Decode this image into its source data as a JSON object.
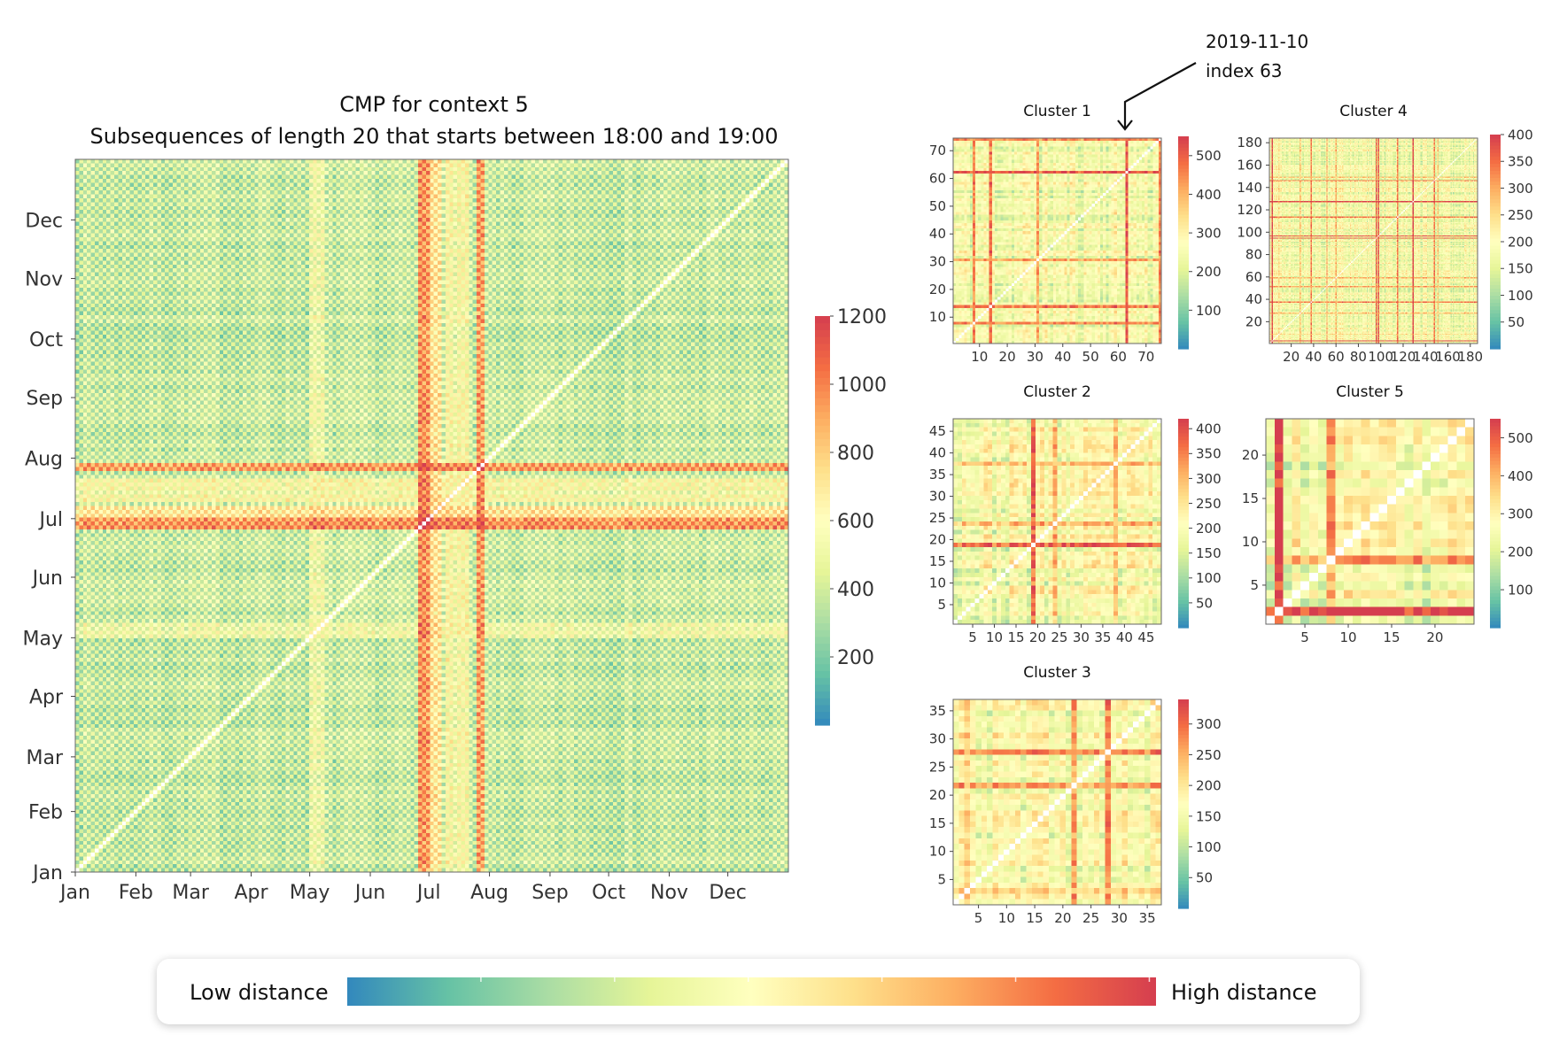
{
  "colormap": {
    "name": "Spectral_r",
    "stops": [
      "#3288bd",
      "#66c2a5",
      "#abdda4",
      "#e6f598",
      "#ffffbf",
      "#fee08b",
      "#fdae61",
      "#f46d43",
      "#d53e4f"
    ]
  },
  "annotation": {
    "line1": "2019-11-10",
    "line2": "index 63"
  },
  "legend": {
    "low_label": "Low distance",
    "high_label": "High distance"
  },
  "chart_data": [
    {
      "id": "main",
      "type": "heatmap",
      "title_line1": "CMP for context 5",
      "title_line2": "Subsequences of length 20 that starts between 18:00 and 19:00",
      "x_tick_labels": [
        "Jan",
        "Feb",
        "Mar",
        "Apr",
        "May",
        "Jun",
        "Jul",
        "Aug",
        "Sep",
        "Oct",
        "Nov",
        "Dec"
      ],
      "x_tick_days": [
        0,
        31,
        59,
        90,
        120,
        151,
        181,
        212,
        243,
        273,
        304,
        334
      ],
      "y_tick_labels": [
        "Jan",
        "Feb",
        "Mar",
        "Apr",
        "May",
        "Jun",
        "Jul",
        "Aug",
        "Sep",
        "Oct",
        "Nov",
        "Dec"
      ],
      "y_tick_days": [
        0,
        31,
        59,
        90,
        120,
        151,
        181,
        212,
        243,
        273,
        304,
        334
      ],
      "x_range_days": [
        0,
        365
      ],
      "colorbar_ticks": [
        200,
        400,
        600,
        800,
        1000,
        1200
      ],
      "colorbar_range": [
        0,
        1200
      ],
      "high_distance_months": [
        "Jul",
        "Aug"
      ],
      "diagonal": "zero distance"
    },
    {
      "id": "cluster1",
      "type": "heatmap",
      "title": "Cluster 1",
      "size": 75,
      "x_ticks": [
        10,
        20,
        30,
        40,
        50,
        60,
        70
      ],
      "y_ticks": [
        10,
        20,
        30,
        40,
        50,
        60,
        70
      ],
      "colorbar_ticks": [
        100,
        200,
        300,
        400,
        500
      ],
      "colorbar_range": [
        0,
        550
      ],
      "highlight_index": 63
    },
    {
      "id": "cluster2",
      "type": "heatmap",
      "title": "Cluster 2",
      "size": 48,
      "x_ticks": [
        5,
        10,
        15,
        20,
        25,
        30,
        35,
        40,
        45
      ],
      "y_ticks": [
        5,
        10,
        15,
        20,
        25,
        30,
        35,
        40,
        45
      ],
      "colorbar_ticks": [
        50,
        100,
        150,
        200,
        250,
        300,
        350,
        400
      ],
      "colorbar_range": [
        0,
        420
      ]
    },
    {
      "id": "cluster3",
      "type": "heatmap",
      "title": "Cluster 3",
      "size": 37,
      "x_ticks": [
        5,
        10,
        15,
        20,
        25,
        30,
        35
      ],
      "y_ticks": [
        5,
        10,
        15,
        20,
        25,
        30,
        35
      ],
      "colorbar_ticks": [
        50,
        100,
        150,
        200,
        250,
        300
      ],
      "colorbar_range": [
        0,
        340
      ]
    },
    {
      "id": "cluster4",
      "type": "heatmap",
      "title": "Cluster 4",
      "size": 186,
      "x_ticks": [
        20,
        40,
        60,
        80,
        100,
        120,
        140,
        160,
        180
      ],
      "y_ticks": [
        20,
        40,
        60,
        80,
        100,
        120,
        140,
        160,
        180
      ],
      "colorbar_ticks": [
        50,
        100,
        150,
        200,
        250,
        300,
        350,
        400
      ],
      "colorbar_range": [
        0,
        400
      ]
    },
    {
      "id": "cluster5",
      "type": "heatmap",
      "title": "Cluster 5",
      "size": 24,
      "x_ticks": [
        5,
        10,
        15,
        20
      ],
      "y_ticks": [
        5,
        10,
        15,
        20
      ],
      "colorbar_ticks": [
        100,
        200,
        300,
        400,
        500
      ],
      "colorbar_range": [
        0,
        550
      ]
    }
  ]
}
